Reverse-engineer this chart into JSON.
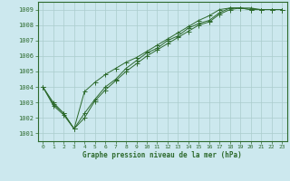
{
  "title": "Graphe pression niveau de la mer (hPa)",
  "bg_color": "#cce8ee",
  "grid_color": "#aacccc",
  "line_color": "#2d6a2d",
  "marker_color": "#2d6a2d",
  "xlim": [
    -0.5,
    23.5
  ],
  "ylim": [
    1000.5,
    1009.5
  ],
  "yticks": [
    1001,
    1002,
    1003,
    1004,
    1005,
    1006,
    1007,
    1008,
    1009
  ],
  "xticks": [
    0,
    1,
    2,
    3,
    4,
    5,
    6,
    7,
    8,
    9,
    10,
    11,
    12,
    13,
    14,
    15,
    16,
    17,
    18,
    19,
    20,
    21,
    22,
    23
  ],
  "series1_x": [
    0,
    1,
    2,
    3,
    4,
    5,
    6,
    7,
    8,
    9,
    10,
    11,
    12,
    13,
    14,
    15,
    16,
    17,
    18,
    19,
    20,
    21,
    22,
    23
  ],
  "series1_y": [
    1004.0,
    1002.8,
    1002.2,
    1001.3,
    1002.0,
    1003.1,
    1003.8,
    1004.4,
    1005.0,
    1005.5,
    1006.0,
    1006.4,
    1006.8,
    1007.2,
    1007.6,
    1008.0,
    1008.2,
    1008.7,
    1009.0,
    1009.1,
    1009.0,
    1009.0,
    1009.0,
    1009.0
  ],
  "series2_x": [
    0,
    1,
    2,
    3,
    4,
    5,
    6,
    7,
    8,
    9,
    10,
    11,
    12,
    13,
    14,
    15,
    16,
    17,
    18,
    19,
    20,
    21,
    22,
    23
  ],
  "series2_y": [
    1004.0,
    1002.9,
    1002.3,
    1001.3,
    1002.3,
    1003.2,
    1004.0,
    1004.5,
    1005.2,
    1005.7,
    1006.2,
    1006.5,
    1007.0,
    1007.3,
    1007.8,
    1008.1,
    1008.3,
    1008.8,
    1009.1,
    1009.1,
    1009.0,
    1009.0,
    1009.0,
    1009.0
  ],
  "series3_x": [
    0,
    1,
    2,
    3,
    4,
    5,
    6,
    7,
    8,
    9,
    10,
    11,
    12,
    13,
    14,
    15,
    16,
    17,
    18,
    19,
    20,
    21,
    22,
    23
  ],
  "series3_y": [
    1004.0,
    1003.0,
    1002.3,
    1001.3,
    1003.7,
    1004.3,
    1004.8,
    1005.2,
    1005.6,
    1005.9,
    1006.3,
    1006.7,
    1007.1,
    1007.5,
    1007.9,
    1008.3,
    1008.6,
    1009.0,
    1009.1,
    1009.1,
    1009.1,
    1009.0,
    1009.0,
    1009.0
  ]
}
